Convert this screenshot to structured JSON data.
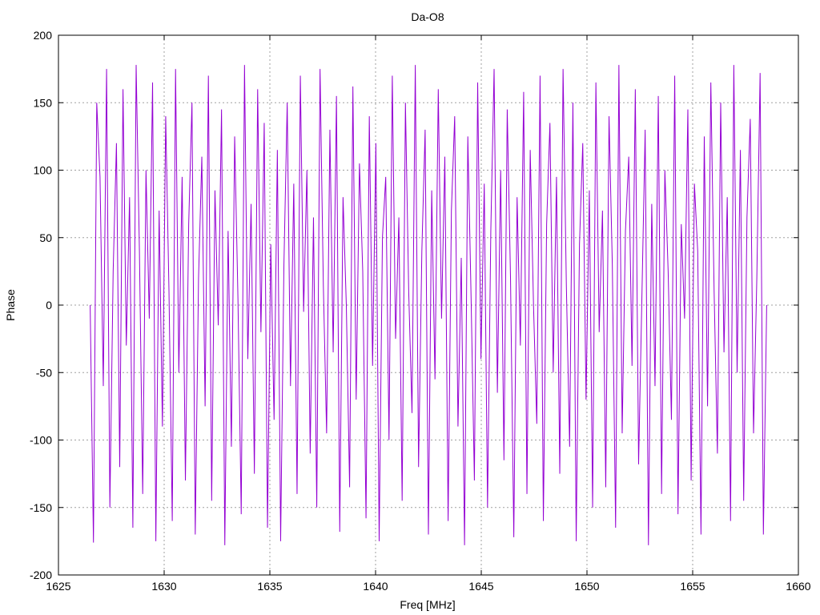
{
  "chart_data": {
    "type": "line",
    "title": "Da-O8",
    "xlabel": "Freq [MHz]",
    "ylabel": "Phase",
    "xlim": [
      1625,
      1660
    ],
    "ylim": [
      -200,
      200
    ],
    "x_ticks": [
      1625,
      1630,
      1635,
      1640,
      1645,
      1650,
      1655,
      1660
    ],
    "y_ticks": [
      -200,
      -150,
      -100,
      -50,
      0,
      50,
      100,
      150,
      200
    ],
    "x_tick_labels": [
      "1625",
      "1630",
      "1635",
      "1640",
      "1645",
      "1650",
      "1655",
      "1660"
    ],
    "y_tick_labels": [
      "-200",
      "-150",
      "-100",
      "-50",
      "0",
      "50",
      "100",
      "150",
      "200"
    ],
    "grid": true,
    "series": [
      {
        "color": "#9400d3",
        "x_start": 1626.5,
        "x_end": 1658.5,
        "values": [
          0,
          -176,
          150,
          95,
          -60,
          175,
          -150,
          25,
          120,
          -120,
          160,
          -30,
          80,
          -165,
          178,
          40,
          -140,
          100,
          -10,
          165,
          -175,
          70,
          -90,
          140,
          10,
          -160,
          175,
          -50,
          95,
          -130,
          60,
          150,
          -170,
          20,
          110,
          -75,
          170,
          -145,
          85,
          -15,
          145,
          -178,
          55,
          -105,
          125,
          5,
          -155,
          178,
          -40,
          75,
          -125,
          160,
          -20,
          135,
          -165,
          45,
          -85,
          115,
          -175,
          30,
          150,
          -60,
          90,
          -140,
          170,
          -5,
          100,
          -110,
          65,
          -150,
          175,
          15,
          -95,
          130,
          -35,
          155,
          -168,
          80,
          0,
          -135,
          162,
          -70,
          105,
          25,
          -158,
          140,
          -45,
          120,
          -175,
          50,
          95,
          -100,
          170,
          -25,
          65,
          -145,
          150,
          10,
          -80,
          178,
          -120,
          40,
          130,
          -170,
          85,
          -55,
          160,
          -10,
          110,
          -160,
          70,
          140,
          -90,
          35,
          -178,
          125,
          5,
          -130,
          165,
          -40,
          90,
          -150,
          55,
          175,
          -65,
          100,
          -115,
          145,
          20,
          -172,
          80,
          -30,
          158,
          -140,
          115,
          0,
          -88,
          170,
          -160,
          60,
          135,
          -50,
          95,
          -125,
          175,
          15,
          -105,
          150,
          -175,
          45,
          120,
          -70,
          85,
          -150,
          165,
          -20,
          70,
          -135,
          140,
          30,
          -165,
          178,
          -95,
          55,
          110,
          -45,
          160,
          -118,
          5,
          130,
          -178,
          75,
          -60,
          155,
          -140,
          100,
          25,
          -85,
          170,
          -155,
          60,
          -10,
          145,
          -130,
          90,
          40,
          -170,
          125,
          -75,
          165,
          10,
          -110,
          150,
          -35,
          80,
          -160,
          178,
          -50,
          115,
          -145,
          65,
          138,
          -95,
          20,
          172,
          -170,
          0
        ]
      }
    ]
  }
}
